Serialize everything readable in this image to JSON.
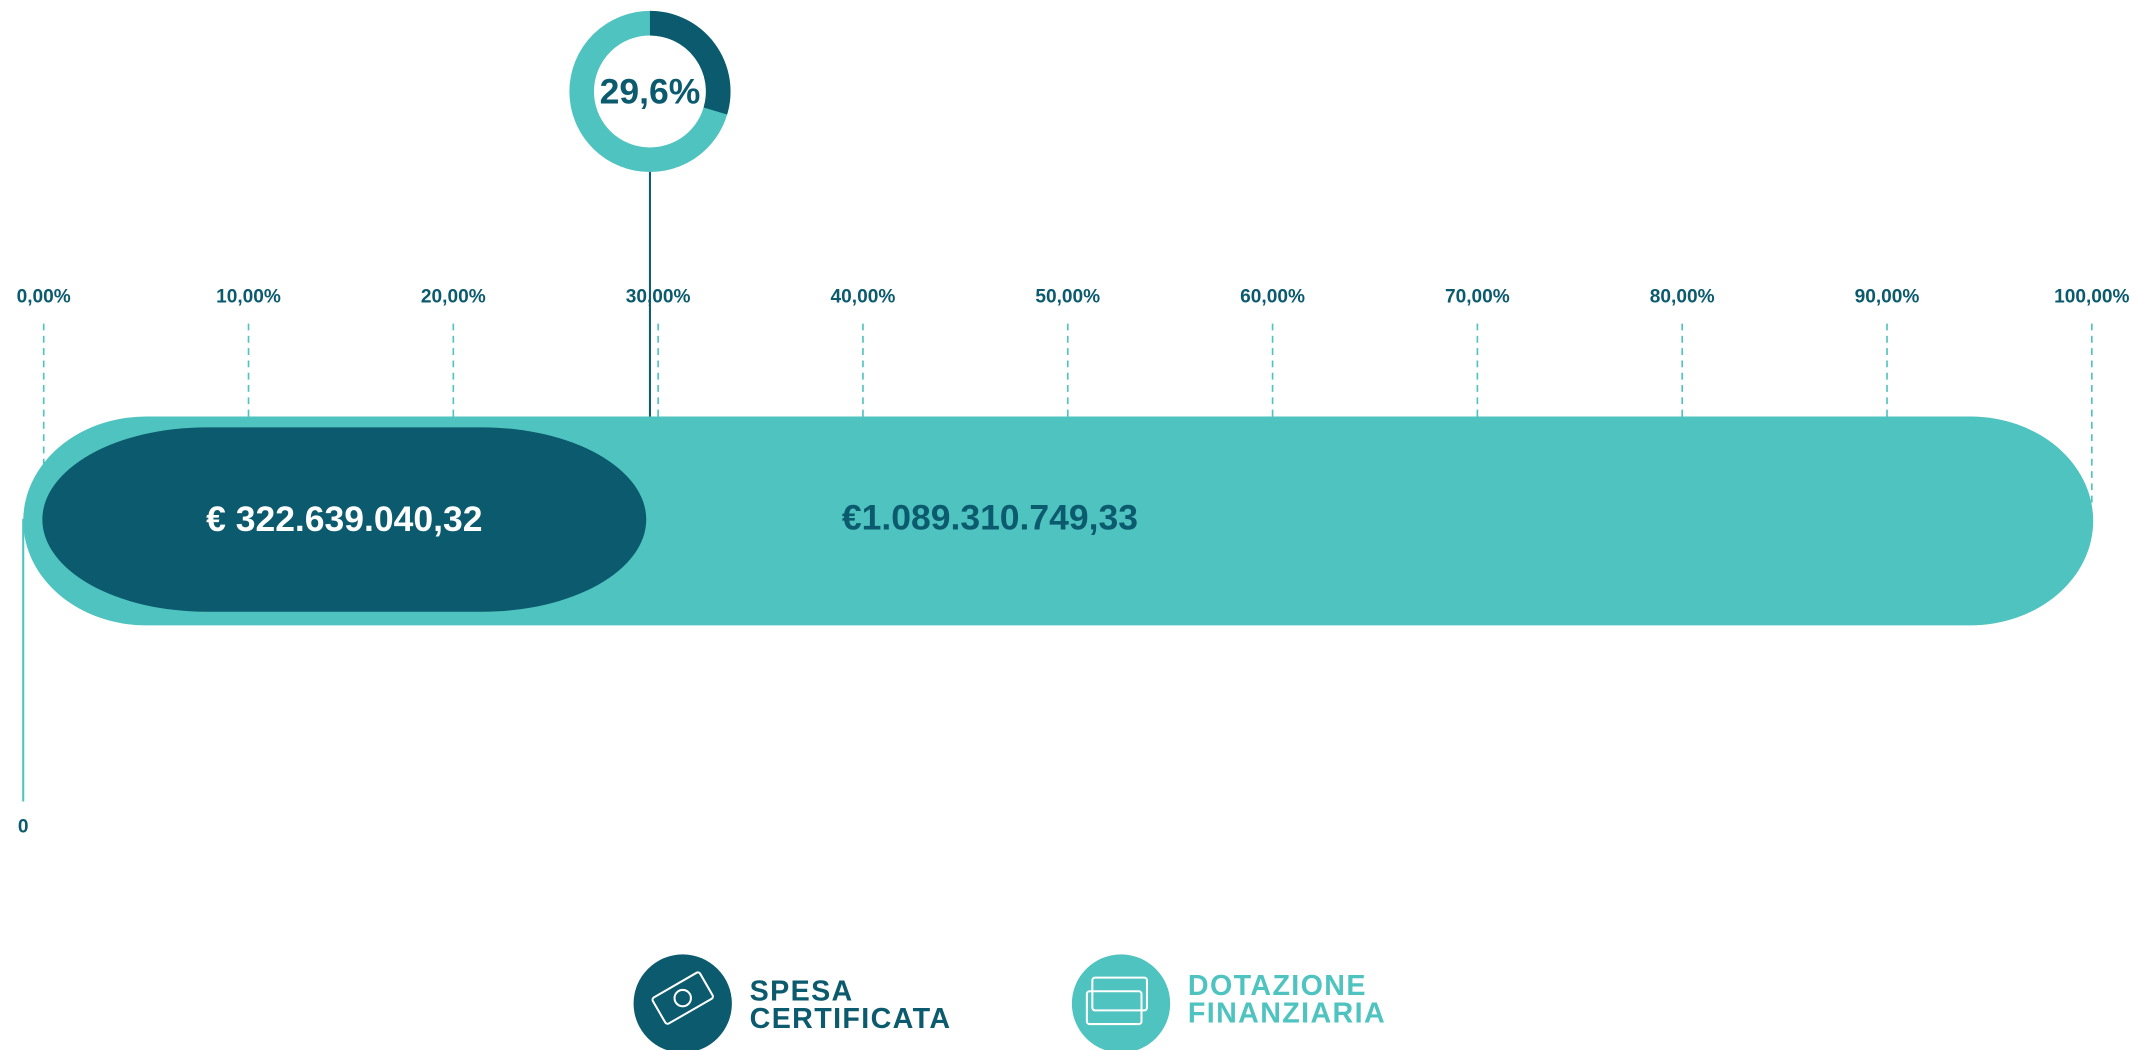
{
  "chart_data": {
    "type": "progress",
    "series": [
      {
        "name": "SPESA CERTIFICATA",
        "color": "#0b5a6e",
        "values": [
          322639040.32
        ],
        "value_labels": [
          "€ 322.639.040,32"
        ]
      },
      {
        "name": "DOTAZIONE FINANZIARIA",
        "color": "#4fc3bf",
        "values": [
          1089310749.33
        ],
        "value_labels": [
          "€1.089.310.749,33"
        ]
      }
    ],
    "percentage": {
      "value": 29.6,
      "label": "29,6%"
    },
    "origin_label": "0",
    "xlim": [
      0,
      100
    ],
    "xticks": [
      {
        "value": 0,
        "label": "0,00%"
      },
      {
        "value": 10,
        "label": "10,00%"
      },
      {
        "value": 20,
        "label": "20,00%"
      },
      {
        "value": 30,
        "label": "30,00%"
      },
      {
        "value": 40,
        "label": "40,00%"
      },
      {
        "value": 50,
        "label": "50,00%"
      },
      {
        "value": 60,
        "label": "60,00%"
      },
      {
        "value": 70,
        "label": "70,00%"
      },
      {
        "value": 80,
        "label": "80,00%"
      },
      {
        "value": 90,
        "label": "90,00%"
      },
      {
        "value": 100,
        "label": "100,00%"
      }
    ]
  }
}
